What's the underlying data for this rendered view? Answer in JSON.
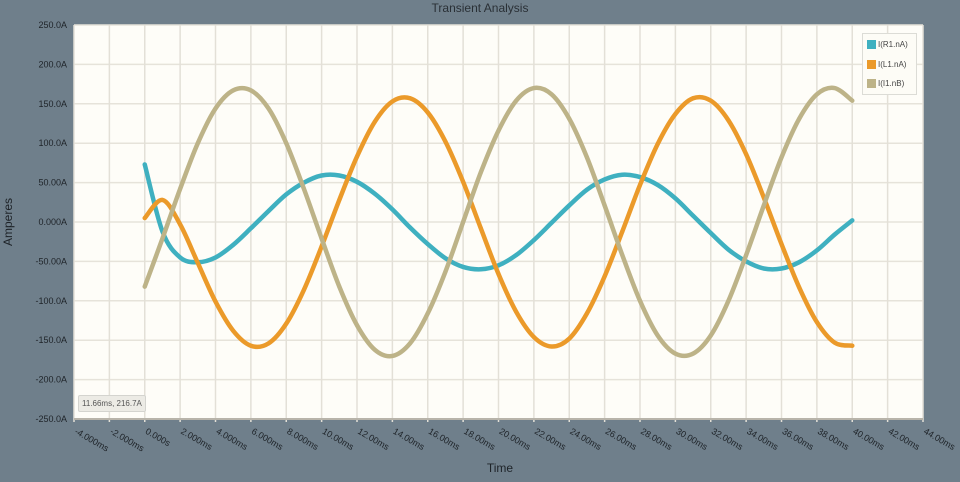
{
  "chart_data": {
    "type": "line",
    "title": "Transient Analysis",
    "xlabel": "Time",
    "ylabel": "Amperes",
    "xlim": [
      -4,
      44
    ],
    "ylim": [
      -250,
      250
    ],
    "grid": true,
    "legend_position": "top-right",
    "x_tick_labels": [
      "-4.000ms",
      "-2.000ms",
      "0.000s",
      "2.000ms",
      "4.000ms",
      "6.000ms",
      "8.000ms",
      "10.00ms",
      "12.00ms",
      "14.00ms",
      "16.00ms",
      "18.00ms",
      "20.00ms",
      "22.00ms",
      "24.00ms",
      "26.00ms",
      "28.00ms",
      "30.00ms",
      "32.00ms",
      "34.00ms",
      "36.00ms",
      "38.00ms",
      "40.00ms",
      "42.00ms",
      "44.00ms"
    ],
    "y_tick_labels": [
      "250.0A",
      "200.0A",
      "150.0A",
      "100.0A",
      "50.00A",
      "0.000A",
      "-50.00A",
      "-100.0A",
      "-150.0A",
      "-200.0A",
      "-250.0A"
    ],
    "x_ms": [
      0,
      1,
      2,
      3,
      4,
      5,
      6,
      7,
      8,
      9,
      10,
      11,
      12,
      13,
      14,
      15,
      16,
      17,
      18,
      19,
      20,
      21,
      22,
      23,
      24,
      25,
      26,
      27,
      28,
      29,
      30,
      31,
      32,
      33,
      34,
      35,
      36,
      37,
      38,
      39,
      40
    ],
    "series": [
      {
        "name": "I(R1.nA)",
        "color": "#3fb0c0",
        "values": [
          73,
          -12,
          -45,
          -51,
          -45,
          -29,
          -8,
          14,
          35,
          50,
          59,
          59,
          51,
          36,
          16,
          -7,
          -28,
          -46,
          -57,
          -60,
          -55,
          -42,
          -23,
          -1,
          21,
          41,
          54,
          60,
          57,
          47,
          30,
          8,
          -14,
          -35,
          -50,
          -59,
          -59,
          -51,
          -36,
          -16,
          2
        ]
      },
      {
        "name": "I(L1.nA)",
        "color": "#eb9a2a",
        "values": [
          5,
          28,
          -3,
          -52,
          -101,
          -138,
          -157,
          -154,
          -129,
          -86,
          -31,
          28,
          83,
          127,
          153,
          157,
          139,
          102,
          51,
          -8,
          -66,
          -114,
          -146,
          -158,
          -148,
          -116,
          -69,
          -12,
          47,
          99,
          137,
          157,
          154,
          129,
          86,
          31,
          -28,
          -83,
          -127,
          -153,
          -157
        ]
      },
      {
        "name": "I(I1.nB)",
        "color": "#bdb388",
        "values": [
          -82,
          -21,
          42,
          100,
          144,
          167,
          167,
          144,
          100,
          42,
          -21,
          -82,
          -131,
          -162,
          -170,
          -154,
          -116,
          -63,
          0,
          63,
          116,
          154,
          170,
          162,
          131,
          82,
          21,
          -42,
          -100,
          -144,
          -167,
          -167,
          -144,
          -100,
          -42,
          21,
          82,
          131,
          162,
          170,
          154
        ]
      }
    ]
  },
  "readout": "11.66ms, 216.7A"
}
